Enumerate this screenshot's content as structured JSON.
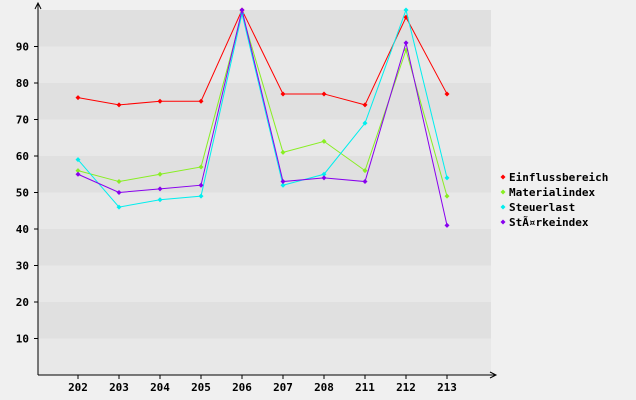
{
  "chart_data": {
    "type": "line",
    "categories": [
      "202",
      "203",
      "204",
      "205",
      "206",
      "207",
      "208",
      "211",
      "212",
      "213"
    ],
    "ylim": [
      0,
      100
    ],
    "yticks": [
      10,
      20,
      30,
      40,
      50,
      60,
      70,
      80,
      90
    ],
    "grid": "horizontal alternating bands",
    "legend_position": "right",
    "series": [
      {
        "name": "Einflussbereich",
        "color": "#ff0000",
        "values": [
          76,
          74,
          75,
          75,
          100,
          77,
          77,
          74,
          98,
          77
        ]
      },
      {
        "name": "Materialindex",
        "color": "#88ee22",
        "values": [
          56,
          53,
          55,
          57,
          99,
          61,
          64,
          56,
          89,
          49
        ]
      },
      {
        "name": "Steuerlast",
        "color": "#00eeee",
        "values": [
          59,
          46,
          48,
          49,
          99,
          52,
          55,
          69,
          100,
          54
        ]
      },
      {
        "name": "StÃ¤rkeindex",
        "color": "#8800ee",
        "values": [
          55,
          50,
          51,
          52,
          100,
          53,
          54,
          53,
          91,
          41
        ]
      }
    ]
  }
}
